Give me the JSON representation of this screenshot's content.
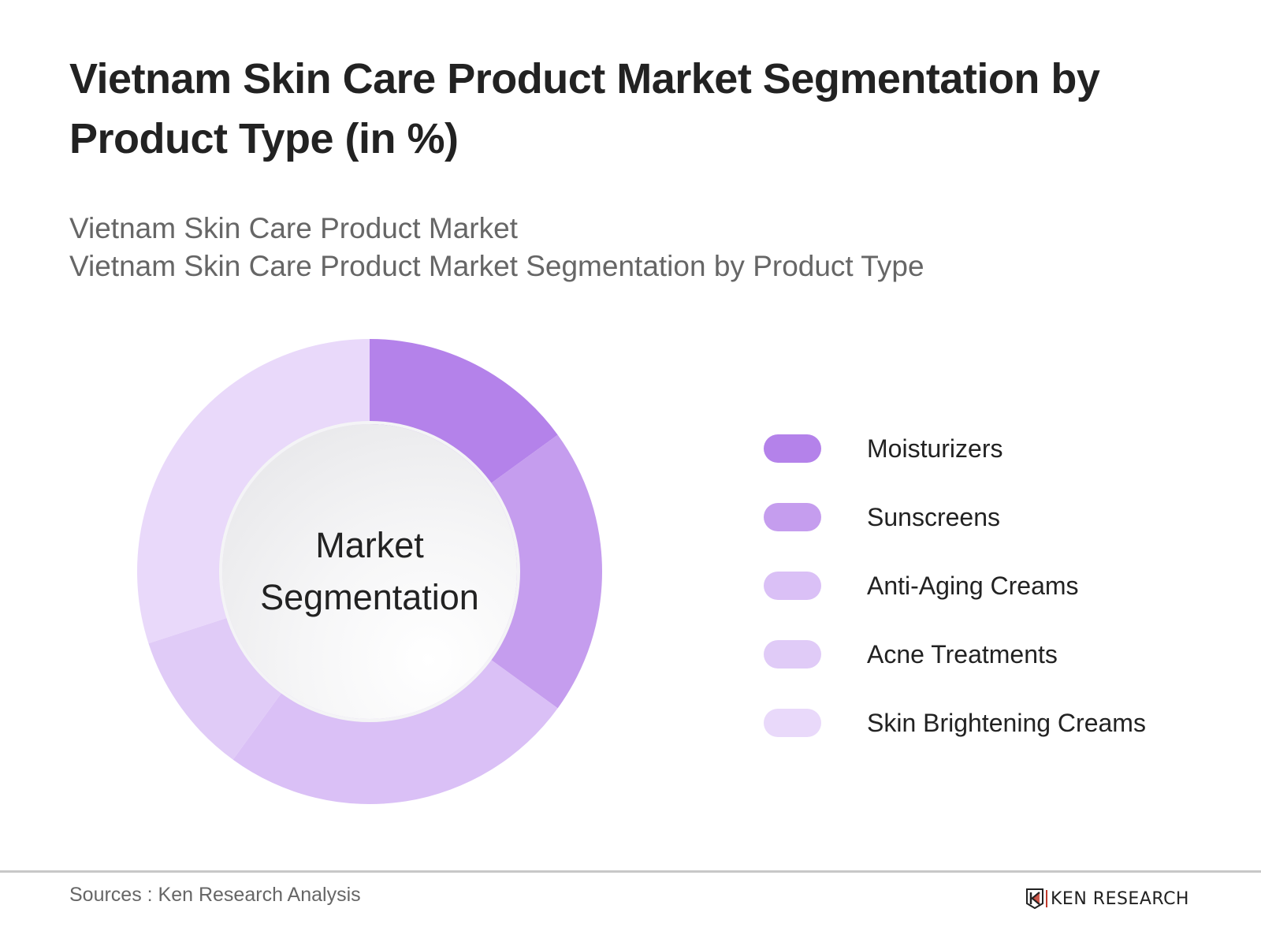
{
  "header": {
    "title": "Vietnam Skin Care Product Market Segmentation by Product Type (in %)",
    "subtitle_line1": "Vietnam Skin Care Product Market",
    "subtitle_line2": "Vietnam Skin Care Product Market Segmentation by Product Type"
  },
  "center": {
    "line1": "Market",
    "line2": "Segmentation"
  },
  "legend": [
    {
      "label": "Moisturizers",
      "color": "#b482ea"
    },
    {
      "label": "Sunscreens",
      "color": "#c59dee"
    },
    {
      "label": "Anti-Aging Creams",
      "color": "#dac0f6"
    },
    {
      "label": "Acne Treatments",
      "color": "#e0cbf7"
    },
    {
      "label": "Skin Brightening Creams",
      "color": "#e9d9fa"
    }
  ],
  "footer": {
    "source": "Sources : Ken Research Analysis",
    "logo_text": "KEN RESEARCH"
  },
  "chart_data": {
    "type": "pie",
    "variant": "donut",
    "title": "Vietnam Skin Care Product Market Segmentation by Product Type (in %)",
    "subtitle": "Vietnam Skin Care Product Market Segmentation by Product Type",
    "center_label": "Market Segmentation",
    "categories": [
      "Moisturizers",
      "Sunscreens",
      "Anti-Aging Creams",
      "Acne Treatments",
      "Skin Brightening Creams"
    ],
    "values": [
      15,
      20,
      25,
      10,
      30
    ],
    "colors": [
      "#b482ea",
      "#c59dee",
      "#dac0f6",
      "#e0cbf7",
      "#e9d9fa"
    ],
    "start_angle": "12 o'clock, clockwise",
    "legend_position": "right",
    "data_labels": false
  }
}
